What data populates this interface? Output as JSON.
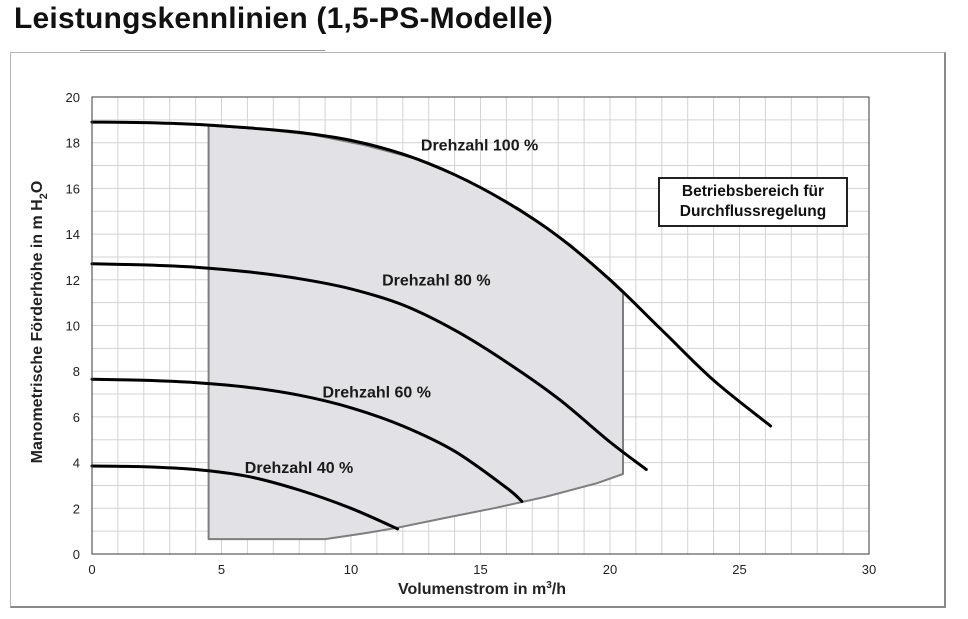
{
  "page": {
    "title": "Leistungskennlinien (1,5-PS-Modelle)"
  },
  "legend": {
    "line1": "Betriebsbereich für",
    "line2": "Durchflussregelung"
  },
  "chart_data": {
    "type": "line",
    "xlabel_main": "Volumenstrom in m",
    "xlabel_sup": "3",
    "xlabel_tail": "/h",
    "ylabel_main": "Manometrische Förderhöhe in m H",
    "ylabel_sub": "2",
    "ylabel_tail": "O",
    "xlim": [
      0,
      30
    ],
    "ylim": [
      0,
      20
    ],
    "x_ticks": [
      0,
      5,
      10,
      15,
      20,
      25,
      30
    ],
    "y_ticks": [
      0,
      2,
      4,
      6,
      8,
      10,
      12,
      14,
      16,
      18,
      20
    ],
    "grid": true,
    "series": [
      {
        "name": "Drehzahl 100 %",
        "x": [
          0,
          2,
          4,
          6,
          8,
          10,
          12,
          14,
          16,
          18,
          20,
          22,
          24,
          26.2
        ],
        "y": [
          18.9,
          18.88,
          18.8,
          18.65,
          18.45,
          18.1,
          17.5,
          16.6,
          15.4,
          13.9,
          12.0,
          9.8,
          7.6,
          5.6
        ]
      },
      {
        "name": "Drehzahl 80 %",
        "x": [
          0,
          2,
          4,
          6,
          8,
          10,
          12,
          14,
          16,
          18,
          20,
          21.4
        ],
        "y": [
          12.7,
          12.65,
          12.55,
          12.35,
          12.05,
          11.6,
          10.9,
          9.8,
          8.4,
          6.8,
          4.9,
          3.7
        ]
      },
      {
        "name": "Drehzahl 60 %",
        "x": [
          0,
          2,
          4,
          6,
          8,
          10,
          12,
          14,
          16,
          16.6
        ],
        "y": [
          7.65,
          7.6,
          7.5,
          7.3,
          6.95,
          6.4,
          5.6,
          4.5,
          2.9,
          2.3
        ]
      },
      {
        "name": "Drehzahl 40 %",
        "x": [
          0,
          2,
          4,
          6,
          8,
          10,
          11.8
        ],
        "y": [
          3.85,
          3.82,
          3.7,
          3.4,
          2.8,
          2.0,
          1.1
        ]
      }
    ],
    "operating_region": {
      "x": [
        4.5,
        4.5,
        6.5,
        8.5,
        10.5,
        12.5,
        14.5,
        16.5,
        18.5,
        20.5,
        20.5,
        19.5,
        17.5,
        15.5,
        13.5,
        11.8,
        10.5,
        9.0,
        4.5
      ],
      "y": [
        0.65,
        18.75,
        18.6,
        18.35,
        17.9,
        17.3,
        16.35,
        15.1,
        13.5,
        11.45,
        3.5,
        3.1,
        2.5,
        2.0,
        1.55,
        1.15,
        0.9,
        0.65,
        0.65
      ]
    }
  }
}
